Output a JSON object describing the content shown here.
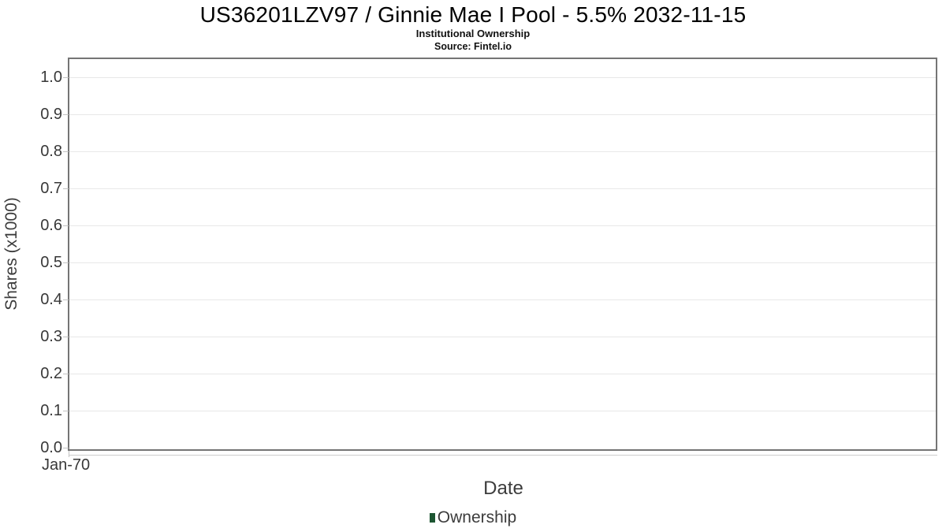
{
  "chart_data": {
    "type": "line",
    "title": "US36201LZV97 / Ginnie Mae I Pool - 5.5% 2032-11-15",
    "subtitle": "Institutional Ownership",
    "source": "Source: Fintel.io",
    "xlabel": "Date",
    "ylabel": "Shares (x1000)",
    "x_tick_labels": [
      "Jan-70"
    ],
    "y_tick_labels": [
      "0.0",
      "0.1",
      "0.2",
      "0.3",
      "0.4",
      "0.5",
      "0.6",
      "0.7",
      "0.8",
      "0.9",
      "1.0"
    ],
    "ylim": [
      0.0,
      1.05
    ],
    "grid": true,
    "legend": {
      "position": "bottom",
      "entries": [
        {
          "label": "Ownership",
          "color": "#1d5632"
        }
      ]
    },
    "series": [
      {
        "name": "Ownership",
        "x": [],
        "y": []
      }
    ]
  },
  "colors": {
    "plot_border": "#757575",
    "gridline": "#e8e8e8",
    "tick_mark": "#c2c2c2",
    "outer_axis_line": "#cccccc",
    "title_text": "#000000",
    "axis_text": "#3c3c3c",
    "legend_marker": "#1d5632",
    "background": "#ffffff"
  }
}
